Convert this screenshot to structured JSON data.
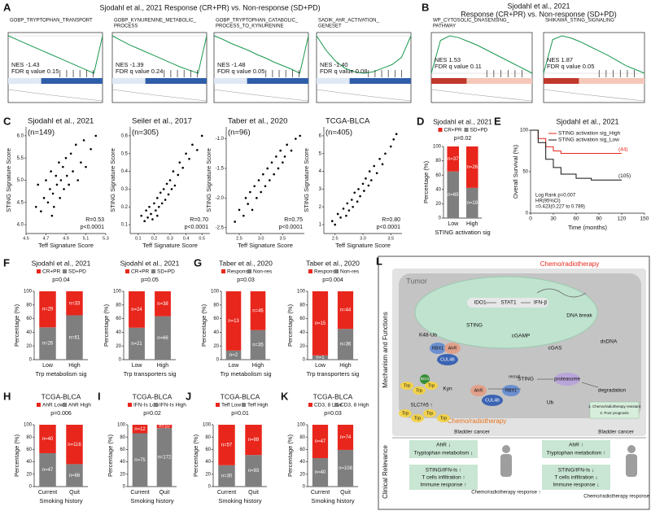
{
  "A": {
    "letter": "A",
    "title": "Sjodahl et al., 2021 Response (CR+PR) vs. Non-response (SD+PD)",
    "plots": [
      {
        "name_lines": [
          "GOBP_TRYPTOPHAN_TRANSPORT"
        ],
        "nes": "NES -1.43",
        "fdr": "FDR q value 0.15",
        "es": [
          0,
          -0.05,
          -0.1,
          -0.15,
          -0.2,
          -0.25,
          -0.3,
          -0.35,
          -0.4,
          -0.45,
          -0.5,
          0
        ]
      },
      {
        "name_lines": [
          "GOBP_KYNURENINE_METABOLIC_",
          "PROCESS"
        ],
        "nes": "NES -1.39",
        "fdr": "FDR q value 0.24",
        "es": [
          0,
          -0.06,
          -0.12,
          -0.17,
          -0.22,
          -0.27,
          -0.32,
          -0.37,
          -0.42,
          -0.46,
          -0.5,
          0
        ]
      },
      {
        "name_lines": [
          "GOBP_TRYPTOPHAN_CATABOLIC_",
          "PROCESS_TO_KYNURENINE"
        ],
        "nes": "NES -1.48",
        "fdr": "FDR q value 0.05",
        "es": [
          0,
          -0.05,
          -0.11,
          -0.16,
          -0.21,
          -0.27,
          -0.32,
          -0.38,
          -0.43,
          -0.48,
          -0.54,
          0
        ]
      },
      {
        "name_lines": [
          "SADIK_AhR_ACTIVATION_",
          "GENESET"
        ],
        "nes": "NES -1.40",
        "fdr": "FDR q value 0.08",
        "es": [
          0,
          -0.2,
          -0.35,
          -0.45,
          -0.5,
          -0.52,
          -0.5,
          -0.45,
          -0.4,
          -0.3,
          0
        ]
      }
    ]
  },
  "B": {
    "letter": "B",
    "title_lines": [
      "Sjodahl et al., 2021",
      "Response (CR+PR) vs. Non-response (SD+PD)"
    ],
    "plots": [
      {
        "name_lines": [
          "WP_CYTOSOLIC_DNASENSING_",
          "PATHWAY"
        ],
        "nes": "NES 1.53",
        "fdr": "FDR q value 0.11",
        "es": [
          0,
          0.35,
          0.4,
          0.38,
          0.34,
          0.3,
          0.25,
          0.2,
          0.15,
          0.1,
          0.05,
          0
        ]
      },
      {
        "name_lines": [
          "SHIKAWA_STING_SIGNALING"
        ],
        "nes": "NES 1.87",
        "fdr": "FDR q value 0.05",
        "es": [
          0,
          0.45,
          0.5,
          0.47,
          0.42,
          0.36,
          0.3,
          0.24,
          0.17,
          0.1,
          0.05,
          0
        ]
      }
    ]
  },
  "chart_data": [
    {
      "type": "scatter",
      "letter": "C",
      "title": "Sjodahl et al., 2021",
      "n": "(n=149)",
      "r": "R=0.53",
      "p": "p<0.0001",
      "xlabel": "Teff Signature Score",
      "ylabel": "STING Signature Score",
      "xlim": [
        4.5,
        5.3
      ],
      "xticks": [
        4.5,
        4.7,
        4.9,
        5.1,
        5.3
      ],
      "ylim": [
        3.8,
        6.2
      ],
      "yticks": [
        {
          "value": 4,
          "label": "4.0"
        },
        4.5,
        {
          "value": 5,
          "label": "5.0"
        },
        5.5,
        {
          "value": 6,
          "label": "6.0"
        }
      ],
      "x": [
        4.6,
        4.62,
        4.65,
        4.68,
        4.7,
        4.72,
        4.74,
        4.75,
        4.77,
        4.78,
        4.8,
        4.81,
        4.83,
        4.84,
        4.85,
        4.87,
        4.88,
        4.9,
        4.91,
        4.93,
        4.95,
        4.97,
        5.0,
        5.02,
        5.05,
        5.08,
        5.1,
        5.15,
        5.2,
        4.76
      ],
      "y": [
        4.4,
        4.9,
        4.3,
        4.6,
        5.0,
        4.5,
        4.8,
        5.2,
        4.7,
        4.4,
        5.1,
        4.9,
        5.4,
        4.6,
        5.0,
        5.3,
        4.8,
        5.5,
        5.1,
        4.9,
        5.6,
        5.2,
        5.8,
        5.0,
        5.4,
        5.9,
        5.3,
        5.7,
        6.0,
        4.2
      ]
    },
    {
      "type": "scatter",
      "title": "Seiler et al., 2017",
      "n": "(n=305)",
      "r": "R=0.70",
      "p": "p<0.0001",
      "xlabel": "Teff Signature Score",
      "ylabel": "STING Signature Score",
      "xlim": [
        0.05,
        0.55
      ],
      "xticks": [
        0.1,
        0.2,
        0.3,
        0.4,
        0.5
      ],
      "ylim": [
        0.05,
        0.65
      ],
      "yticks": [
        0.1,
        0.2,
        0.3,
        0.4,
        0.5,
        0.6
      ],
      "x": [
        0.12,
        0.14,
        0.15,
        0.16,
        0.17,
        0.18,
        0.19,
        0.2,
        0.21,
        0.22,
        0.22,
        0.23,
        0.24,
        0.25,
        0.26,
        0.27,
        0.28,
        0.29,
        0.3,
        0.31,
        0.32,
        0.33,
        0.35,
        0.36,
        0.38,
        0.4,
        0.42,
        0.44,
        0.47,
        0.5
      ],
      "y": [
        0.15,
        0.12,
        0.18,
        0.14,
        0.2,
        0.16,
        0.13,
        0.22,
        0.18,
        0.25,
        0.15,
        0.2,
        0.28,
        0.22,
        0.3,
        0.24,
        0.33,
        0.27,
        0.35,
        0.3,
        0.4,
        0.32,
        0.38,
        0.45,
        0.42,
        0.5,
        0.47,
        0.55,
        0.52,
        0.6
      ]
    },
    {
      "type": "scatter",
      "title": "Taber et al., 2020",
      "n": "(n=96)",
      "r": "R=0.75",
      "p": "p<0.0001",
      "xlabel": "Teff Signature Score",
      "ylabel": "STING Signature Score",
      "xlim": [
        2.2,
        4.0
      ],
      "xticks": [
        2.5,
        {
          "value": 3,
          "label": "3.0"
        },
        3.5
      ],
      "ylim": [
        -2.6,
        -0.8
      ],
      "yticks": [
        -2.5,
        {
          "value": -2,
          "label": "-2.0"
        },
        -1.5,
        {
          "value": -1,
          "label": "-1.0"
        }
      ],
      "x": [
        2.4,
        2.5,
        2.6,
        2.65,
        2.7,
        2.75,
        2.8,
        2.85,
        2.9,
        2.95,
        3.0,
        3.05,
        3.1,
        3.15,
        3.2,
        3.25,
        3.3,
        3.35,
        3.4,
        3.45,
        3.5,
        3.55,
        3.6,
        3.7,
        3.8,
        3.9
      ],
      "y": [
        -2.4,
        -2.2,
        -2.3,
        -2.0,
        -2.1,
        -1.9,
        -2.2,
        -1.8,
        -2.0,
        -1.7,
        -1.9,
        -1.6,
        -1.8,
        -1.5,
        -1.7,
        -1.4,
        -1.6,
        -1.3,
        -1.5,
        -1.2,
        -1.4,
        -1.3,
        -1.1,
        -1.2,
        -1.0,
        -0.95
      ]
    },
    {
      "type": "scatter",
      "title": "TCGA-BLCA",
      "n": "(n=405)",
      "r": "R=0.80",
      "p": "p<0.0001",
      "xlabel": "Teff Signature Score",
      "ylabel": "STING Signature Score",
      "xlim": [
        2.3,
        3.7
      ],
      "xticks": [
        2.5,
        {
          "value": 3,
          "label": "3.0"
        },
        3.5
      ],
      "ylim": [
        0.5,
        6.5
      ],
      "yticks": [
        1,
        2,
        3,
        4,
        5,
        6
      ],
      "x": [
        2.45,
        2.5,
        2.55,
        2.6,
        2.65,
        2.7,
        2.72,
        2.75,
        2.8,
        2.82,
        2.85,
        2.9,
        2.92,
        2.95,
        3.0,
        3.02,
        3.05,
        3.1,
        3.12,
        3.15,
        3.2,
        3.25,
        3.3,
        3.35,
        3.4,
        3.5,
        3.55,
        3.6
      ],
      "y": [
        1.2,
        1.0,
        1.6,
        1.4,
        1.9,
        1.5,
        2.2,
        1.8,
        2.4,
        2.0,
        2.8,
        2.3,
        3.0,
        2.6,
        3.3,
        2.9,
        3.6,
        3.2,
        4.0,
        3.5,
        4.3,
        3.9,
        4.7,
        4.4,
        5.0,
        5.4,
        5.8,
        6.1
      ]
    },
    {
      "type": "bar",
      "letter": "D",
      "title": "Sjodahl et al., 2021",
      "p": "p=0.02",
      "xlabel": "STING activation sig",
      "ylabel": "Percentage (%)",
      "categories": [
        "Low",
        "High"
      ],
      "ylim": [
        0,
        100
      ],
      "yticks": [
        0,
        20,
        40,
        60,
        80,
        100
      ],
      "series": [
        {
          "name": "CR+PR",
          "color": "#e8261c",
          "values": [
            34.9,
            57.8
          ],
          "n_labels": [
            "n=37",
            "n=26"
          ]
        },
        {
          "name": "SD+PD",
          "color": "#7f7f7f",
          "values": [
            65.1,
            42.2
          ],
          "n_labels": [
            "n=69",
            "n=19"
          ]
        }
      ]
    },
    {
      "type": "line",
      "letter": "E",
      "title": "Sjodahl et al., 2021",
      "xlabel": "Time (months)",
      "ylabel": "Overall Survival (%)",
      "xlim": [
        0,
        150
      ],
      "xticks": [
        0,
        30,
        60,
        90,
        120,
        150
      ],
      "ylim": [
        0,
        100
      ],
      "yticks": [
        0,
        50,
        100
      ],
      "series": [
        {
          "name": "STING activation sig_High",
          "color": "#e8261c",
          "x": [
            0,
            10,
            20,
            30,
            40,
            120
          ],
          "values": [
            100,
            90,
            80,
            75,
            72,
            72
          ],
          "end_label": "(44)"
        },
        {
          "name": "STING activation sig_Low",
          "color": "#111111",
          "x": [
            0,
            10,
            20,
            30,
            40,
            60,
            80,
            120
          ],
          "values": [
            100,
            85,
            65,
            55,
            47,
            42,
            40,
            40
          ],
          "end_label": "(105)"
        }
      ],
      "annotations": [
        "Log Rank p=0.007",
        "HR(95%CI)",
        "=0.423(0.227 to 0.789)"
      ]
    },
    {
      "type": "bar",
      "letter": "F",
      "title": "Sjodahl et al., 2021",
      "p": "p=0.04",
      "xlabel": "Trp metabolism sig",
      "ylabel": "Percentage (%)",
      "categories": [
        "Low",
        "High"
      ],
      "ylim": [
        0,
        100
      ],
      "yticks": [
        0,
        20,
        40,
        60,
        80,
        100
      ],
      "series": [
        {
          "name": "CR+PR",
          "color": "#e8261c",
          "values": [
            52.7,
            35.1
          ],
          "n_labels": [
            "n=29",
            "n=33"
          ]
        },
        {
          "name": "SD+PD",
          "color": "#7f7f7f",
          "values": [
            47.3,
            64.9
          ],
          "n_labels": [
            "n=26",
            "n=61"
          ]
        }
      ]
    },
    {
      "type": "bar",
      "title": "Sjodahl et al., 2021",
      "p": "p=0.05",
      "xlabel": "Trp transporters sig",
      "ylabel": "Percentage (%)",
      "categories": [
        "Low",
        "High"
      ],
      "ylim": [
        0,
        100
      ],
      "yticks": [
        0,
        20,
        40,
        60,
        80,
        100
      ],
      "series": [
        {
          "name": "CR+PR",
          "color": "#e8261c",
          "values": [
            53.3,
            36.5
          ],
          "n_labels": [
            "n=24",
            "n=38"
          ]
        },
        {
          "name": "SD+PD",
          "color": "#7f7f7f",
          "values": [
            46.7,
            63.5
          ],
          "n_labels": [
            "n=21",
            "n=66"
          ]
        }
      ]
    },
    {
      "type": "bar",
      "letter": "G",
      "title": "Taber et al., 2020",
      "p": "p=0.03",
      "xlabel": "Trp metabolism sig",
      "ylabel": "Percentage (%)",
      "categories": [
        "Low",
        "High"
      ],
      "ylim": [
        0,
        100
      ],
      "yticks": [
        0,
        20,
        40,
        60,
        80,
        100
      ],
      "series": [
        {
          "name": "Response",
          "color": "#e8261c",
          "values": [
            86.7,
            56.8
          ],
          "n_labels": [
            "n=13",
            "n=46"
          ]
        },
        {
          "name": "Non-res",
          "color": "#7f7f7f",
          "values": [
            13.3,
            43.2
          ],
          "n_labels": [
            "n=2",
            "n=35"
          ]
        }
      ]
    },
    {
      "type": "bar",
      "title": "Taber et al., 2020",
      "p": "p=0.004",
      "xlabel": "Trp transporters sig",
      "ylabel": "Percentage (%)",
      "categories": [
        "Low",
        "High"
      ],
      "ylim": [
        0,
        100
      ],
      "yticks": [
        0,
        20,
        40,
        60,
        80,
        100
      ],
      "series": [
        {
          "name": "Response",
          "color": "#e8261c",
          "values": [
            93.8,
            55
          ],
          "n_labels": [
            "n=15",
            "n=44"
          ]
        },
        {
          "name": "Non-res",
          "color": "#7f7f7f",
          "values": [
            6.2,
            45
          ],
          "n_labels": [
            "n=1",
            "n=36"
          ]
        }
      ]
    },
    {
      "type": "bar",
      "letter": "H",
      "title": "TCGA-BLCA",
      "p": "p=0.006",
      "xlabel": "Smoking history",
      "ylabel": "Percentage (%)",
      "categories": [
        "Current",
        "Quit"
      ],
      "ylim": [
        0,
        100
      ],
      "yticks": [
        0,
        20,
        40,
        60,
        80,
        100
      ],
      "series": [
        {
          "name": "AhR Low",
          "color": "#e8261c",
          "values": [
            46,
            63.7
          ],
          "n_labels": [
            "n=40",
            "n=116"
          ]
        },
        {
          "name": "AhR High",
          "color": "#7f7f7f",
          "values": [
            54,
            36.3
          ],
          "n_labels": [
            "n=47",
            "n=66"
          ]
        }
      ]
    },
    {
      "type": "bar",
      "letter": "I",
      "title": "TCGA-BLCA",
      "p": "p=0.02",
      "xlabel": "Smoking history",
      "ylabel": "Percentage (%)",
      "categories": [
        "Current",
        "Quit"
      ],
      "ylim": [
        0,
        100
      ],
      "yticks": [
        0,
        20,
        40,
        60,
        80,
        100
      ],
      "series": [
        {
          "name": "IFN-Is Low",
          "color": "#e8261c",
          "values": [
            13.8,
            5.5
          ],
          "n_labels": [
            "n=12",
            "n=10"
          ]
        },
        {
          "name": "IFN-Is High",
          "color": "#7f7f7f",
          "values": [
            86.2,
            94.5
          ],
          "n_labels": [
            "n=75",
            "n=172"
          ]
        }
      ]
    },
    {
      "type": "bar",
      "letter": "J",
      "title": "TCGA-BLCA",
      "p": "p=0.01",
      "xlabel": "Smoking history",
      "ylabel": "Percentage (%)",
      "categories": [
        "Current",
        "Quit"
      ],
      "ylim": [
        0,
        100
      ],
      "yticks": [
        0,
        20,
        40,
        60,
        80,
        100
      ],
      "series": [
        {
          "name": "Teff Low",
          "color": "#e8261c",
          "values": [
            65.5,
            48.9
          ],
          "n_labels": [
            "n=57",
            "n=89"
          ]
        },
        {
          "name": "Teff High",
          "color": "#7f7f7f",
          "values": [
            34.5,
            51.1
          ],
          "n_labels": [
            "n=30",
            "n=93"
          ]
        }
      ]
    },
    {
      "type": "bar",
      "letter": "K",
      "title": "TCGA-BLCA",
      "p": "p=0.03",
      "xlabel": "Smoking history",
      "ylabel": "Percentage (%)",
      "categories": [
        "Current",
        "Quit"
      ],
      "ylim": [
        0,
        100
      ],
      "yticks": [
        0,
        20,
        40,
        60,
        80,
        100
      ],
      "series": [
        {
          "name": "CD3, 8 Low",
          "color": "#e8261c",
          "values": [
            54,
            40.7
          ],
          "n_labels": [
            "n=47",
            "n=74"
          ]
        },
        {
          "name": "CD3, 8 High",
          "color": "#7f7f7f",
          "values": [
            46,
            59.3
          ],
          "n_labels": [
            "n=40",
            "n=108"
          ]
        }
      ]
    }
  ],
  "L": {
    "letter": "L",
    "side_top": "Mechanism and Functions",
    "side_bottom": "Clinical Relevance",
    "items": [
      "Chemo/radiotherapy",
      "Tumor",
      "IDO1",
      "STAT1",
      "IFN-β",
      "DNA break",
      "STING",
      "cGAMP",
      "K48-Ub",
      "RBX1",
      "AhR",
      "CUL4B",
      "cGAS",
      "dsDNA",
      "STING",
      "proteasome",
      "degradation",
      "Kyn",
      "IDO1",
      "AhR",
      "RBX1",
      "CUL4B",
      "recruit",
      "Ub",
      "SLC7A5 ↑",
      "Chemo/radiotherapy",
      "1. Chemo/radiotherapy resistant",
      "2. Poor prognosis",
      "Bladder cancer",
      "Bladder cancer",
      "AhR ↓",
      "Tryptophan metabolism ↓",
      "STING/IFN-Is ↑",
      "T cells infiltration ↑",
      "Immune response ↑",
      "Chemo/radiotherapy response ↑",
      "AhR ↑",
      "Tryptophan metabolism ↑",
      "STING/IFN-Is ↓",
      "T cells infiltration ↓",
      "Immune response ↓",
      "Chemo/radiotherapy response ↓"
    ],
    "trp": [
      "Trp",
      "Trp",
      "Trp",
      "Trp",
      "Trp",
      "Trp",
      "Trp"
    ]
  }
}
